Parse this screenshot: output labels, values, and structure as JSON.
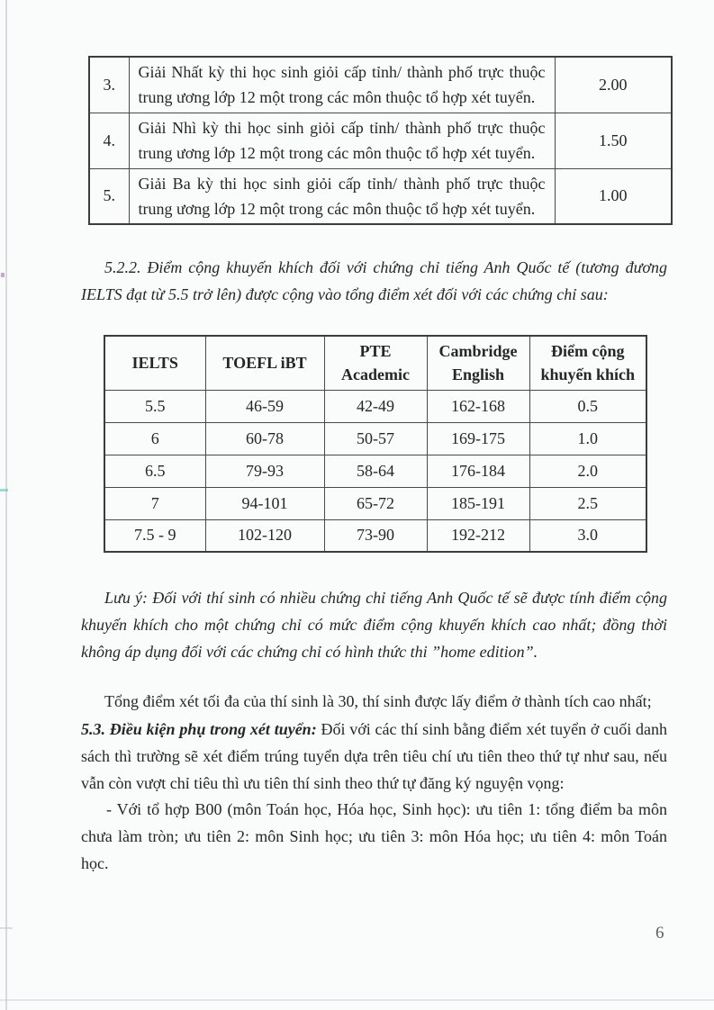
{
  "page": {
    "number": "6"
  },
  "award_table": {
    "rows": [
      {
        "no": "3.",
        "description": "Giải Nhất kỳ thi học sinh giỏi cấp tỉnh/ thành phố trực thuộc trung ương lớp 12 một trong các môn thuộc tổ hợp xét tuyển.",
        "points": "2.00"
      },
      {
        "no": "4.",
        "description": "Giải Nhì kỳ thi học sinh giỏi cấp tỉnh/ thành phố trực thuộc trung ương lớp 12 một trong các môn thuộc tổ hợp xét tuyển.",
        "points": "1.50"
      },
      {
        "no": "5.",
        "description": "Giải Ba kỳ thi học sinh giỏi cấp tỉnh/ thành phố trực thuộc trung ương lớp 12 một trong các môn thuộc tổ hợp xét tuyển.",
        "points": "1.00"
      }
    ]
  },
  "section_522": {
    "text": "5.2.2. Điểm cộng khuyến khích đối với chứng chỉ tiếng Anh Quốc tế (tương đương IELTS đạt từ 5.5 trở lên) được cộng vào tổng điểm xét đối với các chứng chỉ sau:"
  },
  "certificate_table": {
    "headers": [
      "IELTS",
      "TOEFL iBT",
      "PTE Academic",
      "Cambridge English",
      "Điểm cộng khuyến khích"
    ],
    "rows": [
      [
        "5.5",
        "46-59",
        "42-49",
        "162-168",
        "0.5"
      ],
      [
        "6",
        "60-78",
        "50-57",
        "169-175",
        "1.0"
      ],
      [
        "6.5",
        "79-93",
        "58-64",
        "176-184",
        "2.0"
      ],
      [
        "7",
        "94-101",
        "65-72",
        "185-191",
        "2.5"
      ],
      [
        "7.5 - 9",
        "102-120",
        "73-90",
        "192-212",
        "3.0"
      ]
    ]
  },
  "note": {
    "text": "Lưu ý: Đối với thí sinh có nhiều chứng chỉ tiếng Anh Quốc tế sẽ được tính điểm cộng khuyến khích cho một chứng chỉ có mức điểm cộng khuyến khích cao nhất; đồng thời không áp dụng đối với các chứng chỉ có hình thức thi ”home edition”."
  },
  "paragraphs": {
    "max_score": "Tổng điểm xét tối đa của thí sinh là 30, thí sinh được lấy điểm ở thành tích cao nhất;",
    "section_53_label": "5.3. Điều kiện phụ trong xét tuyển:",
    "section_53_text": " Đối với các thí sinh bằng điểm xét tuyển ở cuối danh sách thì trường sẽ xét điểm trúng tuyển dựa trên tiêu chí ưu tiên theo thứ tự như sau, nếu vẫn còn vượt chỉ tiêu thì ưu tiên thí sinh theo thứ tự đăng ký nguyện vọng:",
    "b00": "- Với tổ hợp B00 (môn Toán học, Hóa học, Sinh học): ưu tiên 1: tổng điểm ba môn chưa làm tròn; ưu tiên 2: môn Sinh học; ưu tiên 3: môn Hóa học; ưu tiên 4: môn Toán học."
  }
}
